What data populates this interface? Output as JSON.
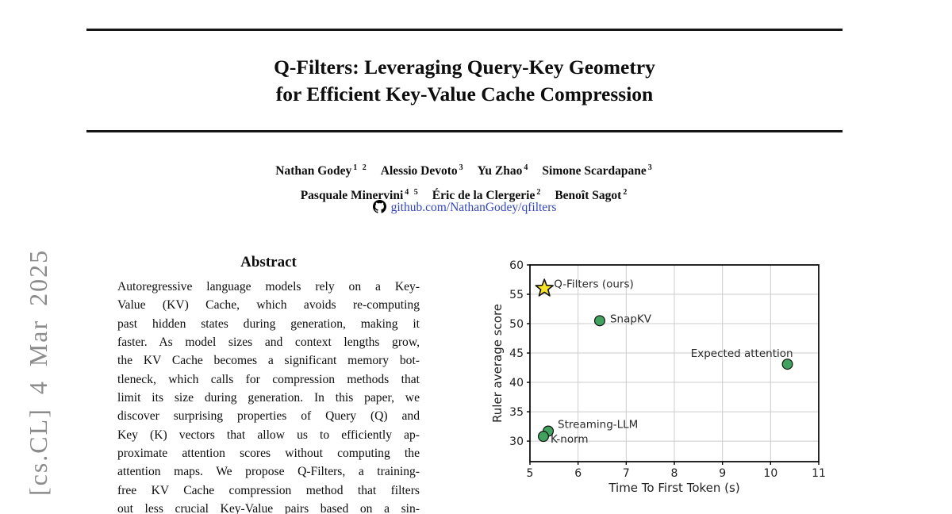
{
  "stamp": {
    "text": "[cs.CL]  4 Mar 2025",
    "color": "#8b8b8b"
  },
  "header": {
    "title_line1": "Q-Filters: Leveraging Query-Key Geometry",
    "title_line2": "for Efficient Key-Value Cache Compression",
    "github_icon": "github-octocat-mark",
    "github_link": "github.com/NathanGodey/qfilters",
    "link_color": "#3446bb"
  },
  "authors": {
    "line1": [
      {
        "name": "Nathan Godey",
        "sup": "1 2"
      },
      {
        "name": "Alessio Devoto",
        "sup": "3"
      },
      {
        "name": "Yu Zhao",
        "sup": "4"
      },
      {
        "name": "Simone Scardapane",
        "sup": "3"
      }
    ],
    "line2": [
      {
        "name": "Pasquale Minervini",
        "sup": "4 5"
      },
      {
        "name": "Éric de la Clergerie",
        "sup": "2"
      },
      {
        "name": "Benoît Sagot",
        "sup": "2"
      }
    ]
  },
  "abstract": {
    "heading": "Abstract",
    "lines": [
      "Autoregressive language models rely on a Key-",
      "Value (KV) Cache, which avoids re-computing",
      "past hidden states during generation, making it",
      "faster. As model sizes and context lengths grow,",
      "the KV Cache becomes a significant memory bot-",
      "tleneck, which calls for compression methods that",
      "limit its size during generation. In this paper, we",
      "discover surprising properties of Query (Q) and",
      "Key (K) vectors that allow us to efficiently ap-",
      "proximate attention scores without computing the",
      "attention maps. We propose Q-Filters, a training-",
      "free KV Cache compression method that filters",
      "out less crucial Key-Value pairs based on a sin-"
    ]
  },
  "chart_data": {
    "type": "scatter",
    "title": "",
    "xlabel": "Time To First Token (s)",
    "ylabel": "Ruler average score",
    "xlim": [
      5,
      11
    ],
    "ylim": [
      26.5,
      60
    ],
    "xticks": [
      5,
      6,
      7,
      8,
      9,
      10,
      11
    ],
    "yticks": [
      30,
      35,
      40,
      45,
      50,
      55,
      60
    ],
    "grid": true,
    "grid_color": "#cccccc",
    "spine_color": "#000000",
    "text_color": "#1f1f1f",
    "points": [
      {
        "label": "Q-Filters (ours)",
        "x": 5.3,
        "y": 56.0,
        "marker": "star",
        "color": "#f7e32a",
        "edge": "#111111"
      },
      {
        "label": "SnapKV",
        "x": 6.45,
        "y": 50.5,
        "marker": "circle",
        "color": "#41a15e",
        "edge": "#111111"
      },
      {
        "label": "Expected attention",
        "x": 10.35,
        "y": 43.1,
        "marker": "circle",
        "color": "#41a15e",
        "edge": "#111111"
      },
      {
        "label": "Streaming-LLM",
        "x": 5.38,
        "y": 31.7,
        "marker": "circle",
        "color": "#41a15e",
        "edge": "#111111"
      },
      {
        "label": "K-norm",
        "x": 5.28,
        "y": 30.8,
        "marker": "circle",
        "color": "#41a15e",
        "edge": "#111111"
      }
    ]
  }
}
